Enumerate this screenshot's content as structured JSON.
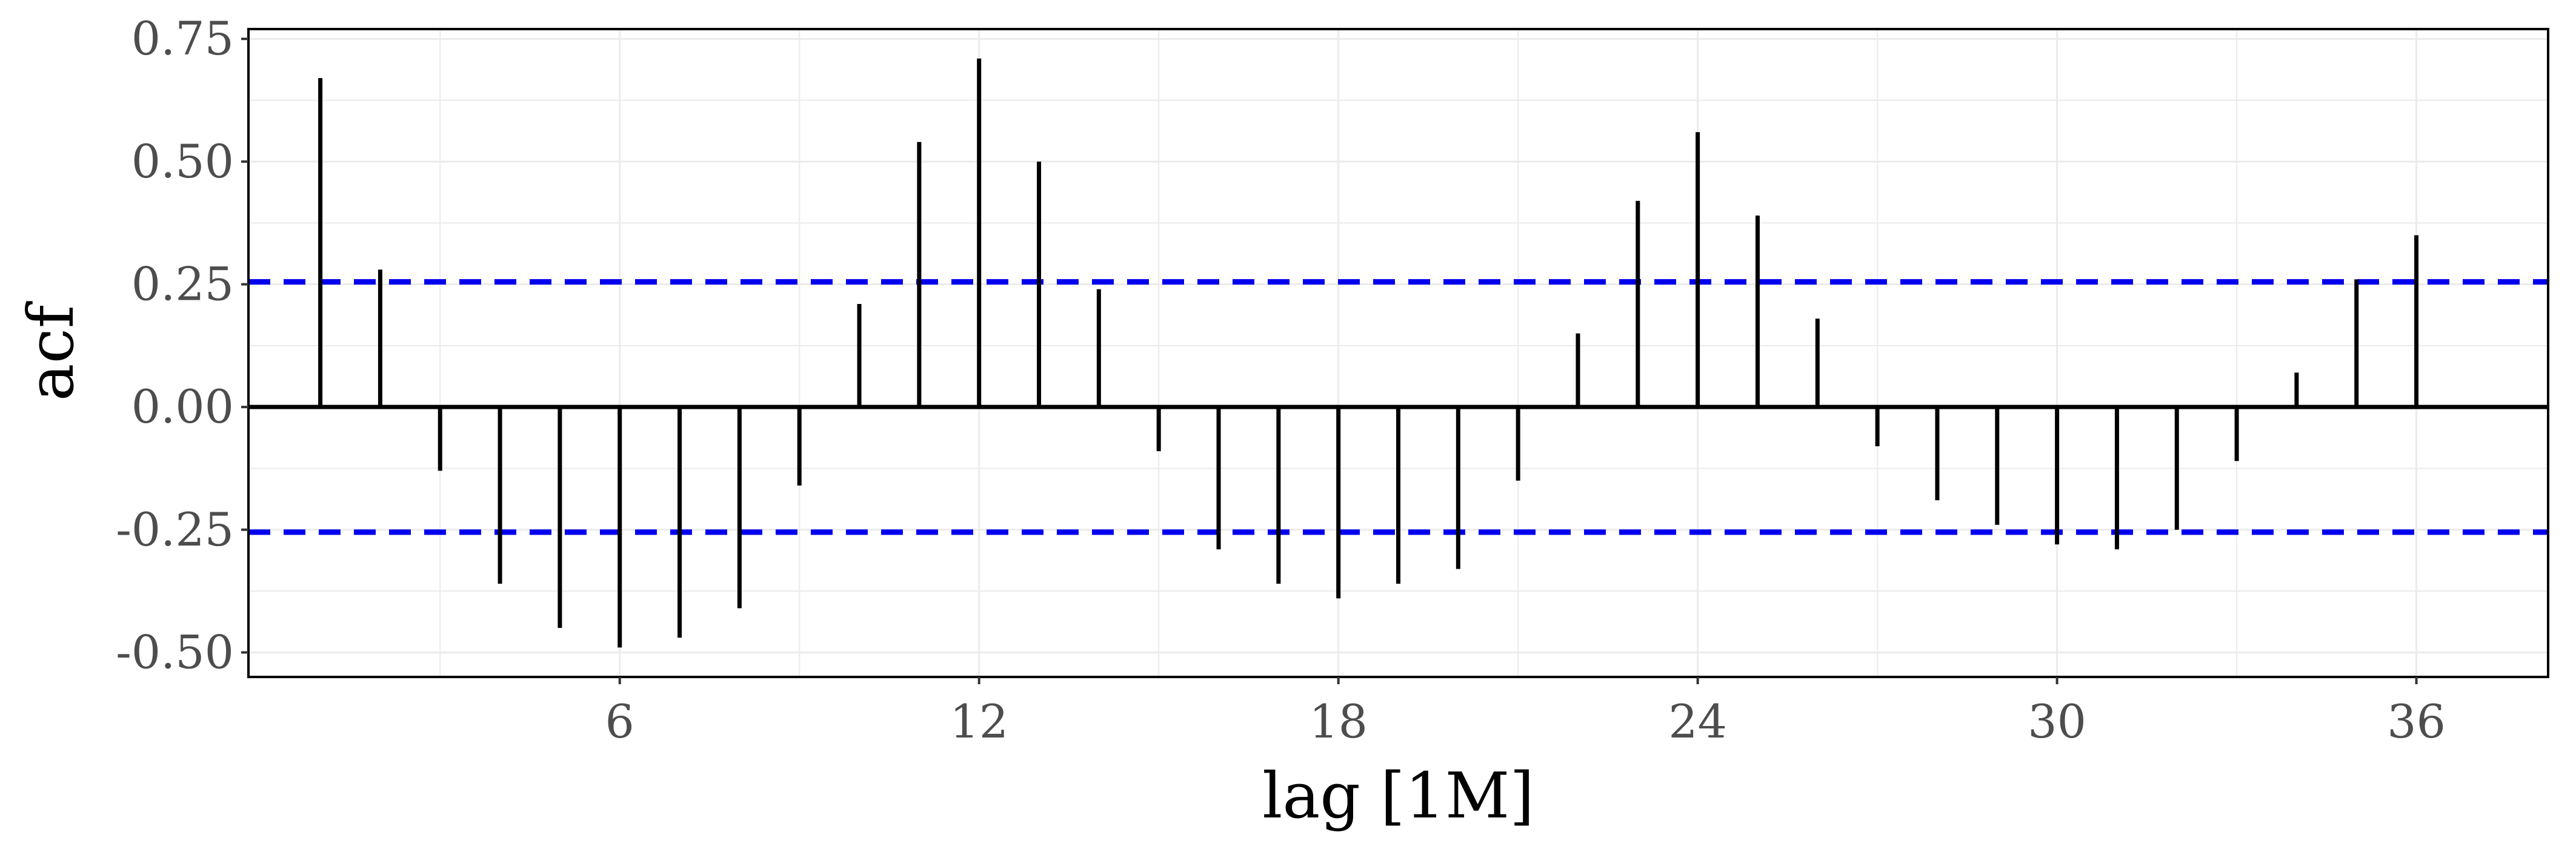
{
  "chart_data": {
    "type": "bar",
    "title": "",
    "xlabel": "lag [1M]",
    "ylabel": "acf",
    "xlim": [
      -0.2,
      38.2
    ],
    "ylim": [
      -0.55,
      0.77
    ],
    "x_ticks": [
      6,
      12,
      18,
      24,
      30,
      36
    ],
    "x_tick_labels": [
      "6",
      "12",
      "18",
      "24",
      "30",
      "36"
    ],
    "y_ticks": [
      -0.5,
      -0.25,
      0,
      0.25,
      0.5,
      0.75
    ],
    "y_tick_labels": [
      "-0.50",
      "-0.25",
      "0.00",
      "0.25",
      "0.50",
      "0.75"
    ],
    "grid": true,
    "lags": [
      1,
      2,
      3,
      4,
      5,
      6,
      7,
      8,
      9,
      10,
      11,
      12,
      13,
      14,
      15,
      16,
      17,
      18,
      19,
      20,
      21,
      22,
      23,
      24,
      25,
      26,
      27,
      28,
      29,
      30,
      31,
      32,
      33,
      34,
      35,
      36
    ],
    "values": [
      0.67,
      0.28,
      -0.13,
      -0.36,
      -0.45,
      -0.49,
      -0.47,
      -0.41,
      -0.16,
      0.21,
      0.54,
      0.71,
      0.5,
      0.24,
      -0.09,
      -0.29,
      -0.36,
      -0.39,
      -0.36,
      -0.33,
      -0.15,
      0.15,
      0.42,
      0.56,
      0.39,
      0.18,
      -0.08,
      -0.19,
      -0.24,
      -0.28,
      -0.29,
      -0.25,
      -0.11,
      0.07,
      0.26,
      0.35
    ],
    "confidence_bound": 0.255,
    "colors": {
      "bars": "#000000",
      "confidence_lines": "#0000ee",
      "zero_line": "#000000",
      "grid": "#ebebeb",
      "panel_border": "#000000"
    }
  }
}
